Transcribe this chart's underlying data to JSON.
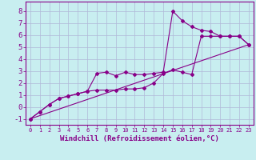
{
  "xlabel": "Windchill (Refroidissement éolien,°C)",
  "ylabel": "",
  "xlim": [
    -0.5,
    23.5
  ],
  "ylim": [
    -1.5,
    8.8
  ],
  "bg_color": "#c8eef0",
  "grid_color": "#b0b8d8",
  "line_color": "#880088",
  "line1_x": [
    0,
    1,
    2,
    3,
    4,
    5,
    6,
    7,
    8,
    9,
    10,
    11,
    12,
    13,
    14,
    15,
    16,
    17,
    18,
    19,
    20,
    21,
    22,
    23
  ],
  "line1_y": [
    -1.0,
    -0.4,
    0.2,
    0.7,
    0.9,
    1.1,
    1.3,
    1.4,
    1.4,
    1.4,
    1.5,
    1.5,
    1.6,
    2.0,
    2.8,
    3.1,
    2.9,
    2.7,
    5.9,
    5.9,
    5.9,
    5.9,
    5.9,
    5.2
  ],
  "line2_x": [
    0,
    1,
    2,
    3,
    4,
    5,
    6,
    7,
    8,
    9,
    10,
    11,
    12,
    13,
    14,
    15,
    16,
    17,
    18,
    19,
    20,
    21,
    22,
    23
  ],
  "line2_y": [
    -1.0,
    -0.4,
    0.2,
    0.7,
    0.9,
    1.1,
    1.3,
    2.8,
    2.9,
    2.6,
    2.9,
    2.7,
    2.7,
    2.8,
    2.9,
    8.0,
    7.2,
    6.7,
    6.4,
    6.3,
    5.9,
    5.9,
    5.9,
    5.2
  ],
  "line3_x": [
    0,
    23
  ],
  "line3_y": [
    -1.0,
    5.2
  ],
  "xtick_fontsize": 5.0,
  "ytick_fontsize": 6.5,
  "xlabel_fontsize": 6.5,
  "marker": "D",
  "marker_size": 2.0
}
